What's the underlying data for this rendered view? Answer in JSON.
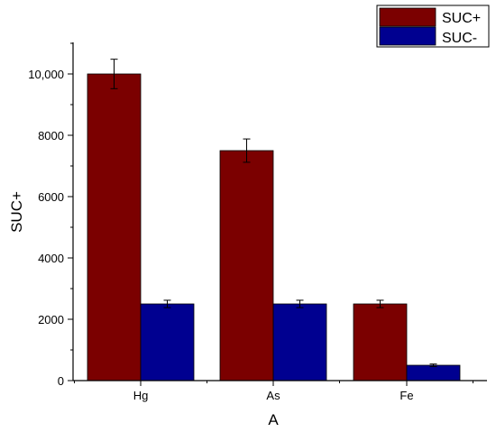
{
  "chart_data": {
    "type": "bar",
    "xlabel": "A",
    "ylabel": "SUC+",
    "categories": [
      "Hg",
      "As",
      "Fe"
    ],
    "ylim": [
      0,
      11000
    ],
    "yticks": [
      0,
      2000,
      4000,
      6000,
      8000,
      10000
    ],
    "ytick_labels": [
      "0",
      "2000",
      "4000",
      "6000",
      "8000",
      "10,000"
    ],
    "legend_position": "top-right",
    "grid": false,
    "series": [
      {
        "name": "SUC+",
        "color": "#7b0000",
        "values": [
          10000,
          7500,
          2500
        ],
        "errors": [
          480,
          380,
          120
        ]
      },
      {
        "name": "SUC-",
        "color": "#000090",
        "values": [
          2500,
          2500,
          500
        ],
        "errors": [
          120,
          120,
          40
        ]
      }
    ]
  }
}
